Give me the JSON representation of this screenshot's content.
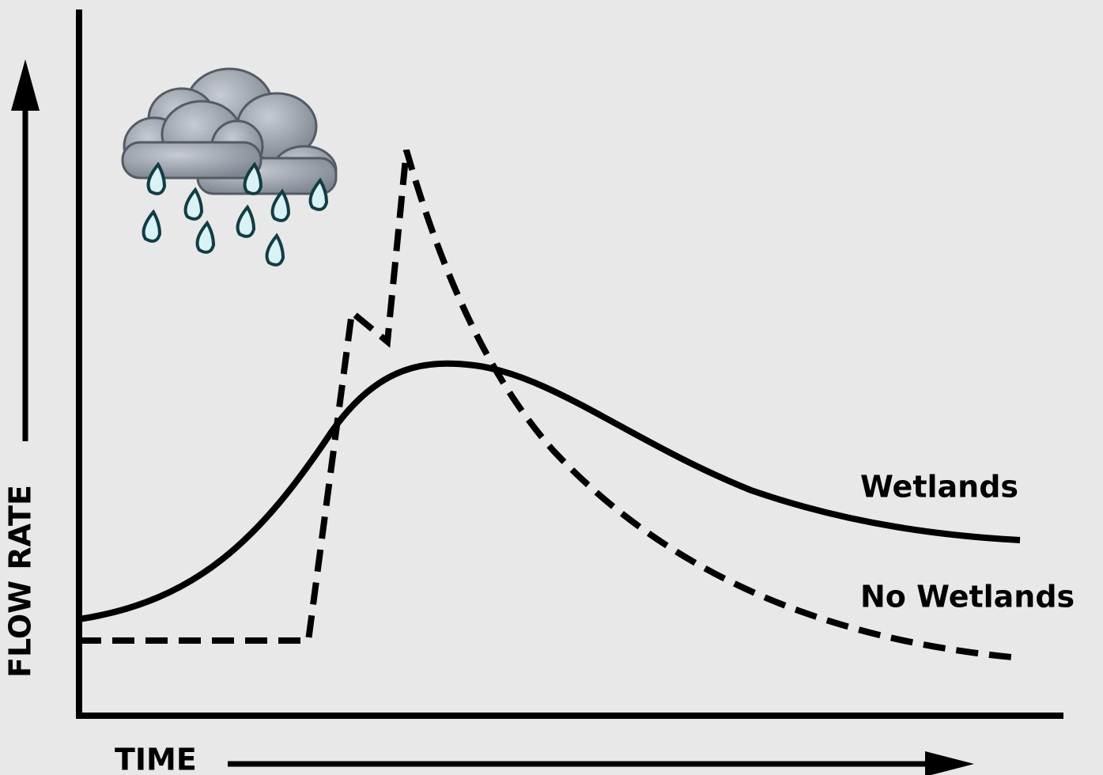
{
  "axes": {
    "y_label": "FLOW RATE",
    "x_label": "TIME"
  },
  "curves": [
    {
      "label": "Wetlands"
    },
    {
      "label": "No Wetlands"
    }
  ]
}
